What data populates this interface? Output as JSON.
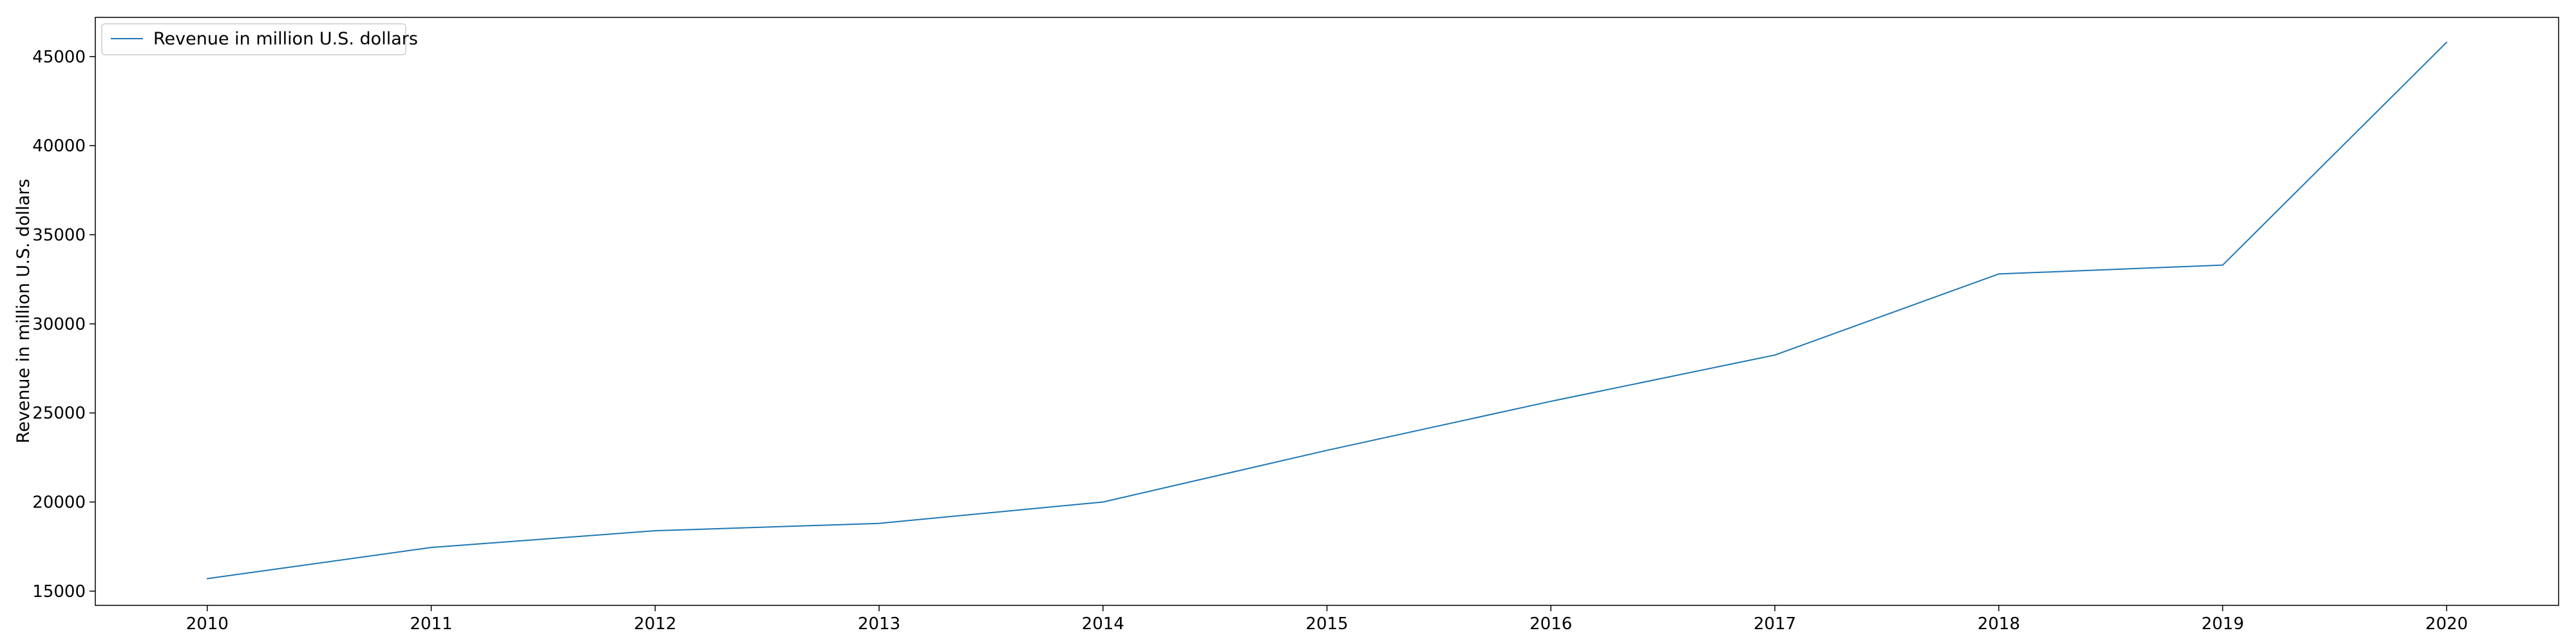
{
  "chart_data": {
    "type": "line",
    "title": "",
    "xlabel": "",
    "ylabel": "Revenue in million U.S. dollars",
    "x": [
      2010,
      2011,
      2012,
      2013,
      2014,
      2015,
      2016,
      2017,
      2018,
      2019,
      2020
    ],
    "series": [
      {
        "name": "Revenue in million U.S. dollars",
        "color": "#1f77b4",
        "values": [
          15700,
          17450,
          18390,
          18800,
          20000,
          22900,
          25650,
          28250,
          32800,
          33300,
          45800
        ]
      }
    ],
    "xlim": [
      2009.5,
      2020.5
    ],
    "ylim": [
      14200,
      47200
    ],
    "yticks": [
      15000,
      20000,
      25000,
      30000,
      35000,
      40000,
      45000
    ],
    "xticks": [
      2010,
      2011,
      2012,
      2013,
      2014,
      2015,
      2016,
      2017,
      2018,
      2019,
      2020
    ],
    "grid": false,
    "legend_position": "top-left"
  }
}
